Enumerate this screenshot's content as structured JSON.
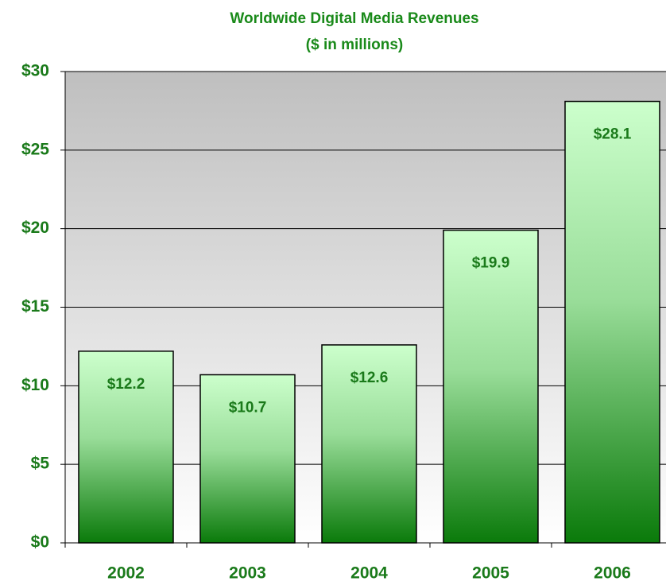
{
  "chart_data": {
    "type": "bar",
    "title": "Worldwide Digital Media Revenues",
    "subtitle": "($ in millions)",
    "categories": [
      "2002",
      "2003",
      "2004",
      "2005",
      "2006"
    ],
    "values": [
      12.2,
      10.7,
      12.6,
      19.9,
      28.1
    ],
    "value_labels": [
      "$12.2",
      "$10.7",
      "$12.6",
      "$19.9",
      "$28.1"
    ],
    "color": "#0a7a0a",
    "ylim": [
      0,
      30
    ],
    "yticks": [
      {
        "value": 0,
        "label": "$0"
      },
      {
        "value": 5,
        "label": "$5"
      },
      {
        "value": 10,
        "label": "$10"
      },
      {
        "value": 15,
        "label": "$15"
      },
      {
        "value": 20,
        "label": "$20"
      },
      {
        "value": 25,
        "label": "$25"
      },
      {
        "value": 30,
        "label": "$30"
      }
    ],
    "grid": true
  }
}
